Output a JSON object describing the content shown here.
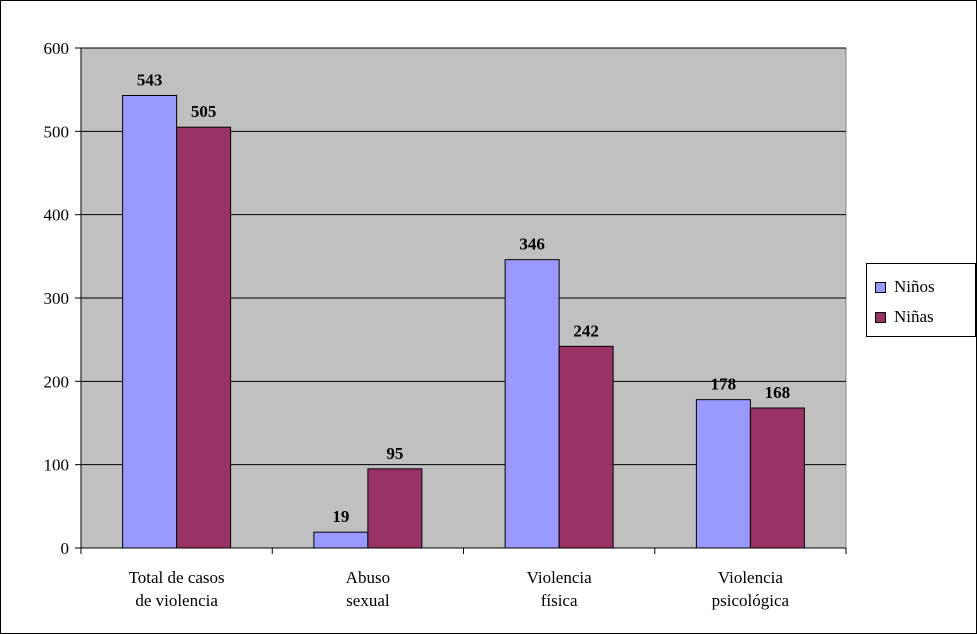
{
  "chart_data": {
    "type": "bar",
    "categories": [
      [
        "Total de casos",
        "de violencia"
      ],
      [
        "Abuso",
        "sexual"
      ],
      [
        "Violencia",
        "física"
      ],
      [
        "Violencia",
        "psicológica"
      ]
    ],
    "series": [
      {
        "name": "Niños",
        "color": "#9999ff",
        "values": [
          543,
          19,
          346,
          178
        ]
      },
      {
        "name": "Niñas",
        "color": "#993366",
        "values": [
          505,
          95,
          242,
          168
        ]
      }
    ],
    "ylim": [
      0,
      600
    ],
    "yticks": [
      0,
      100,
      200,
      300,
      400,
      500,
      600
    ],
    "title": "",
    "xlabel": "",
    "ylabel": "",
    "grid": true,
    "legend": "right",
    "plot_background": "#c0c0c0"
  },
  "legend": {
    "items": [
      {
        "label": "Niños",
        "color": "#9999ff"
      },
      {
        "label": "Niñas",
        "color": "#993366"
      }
    ]
  }
}
